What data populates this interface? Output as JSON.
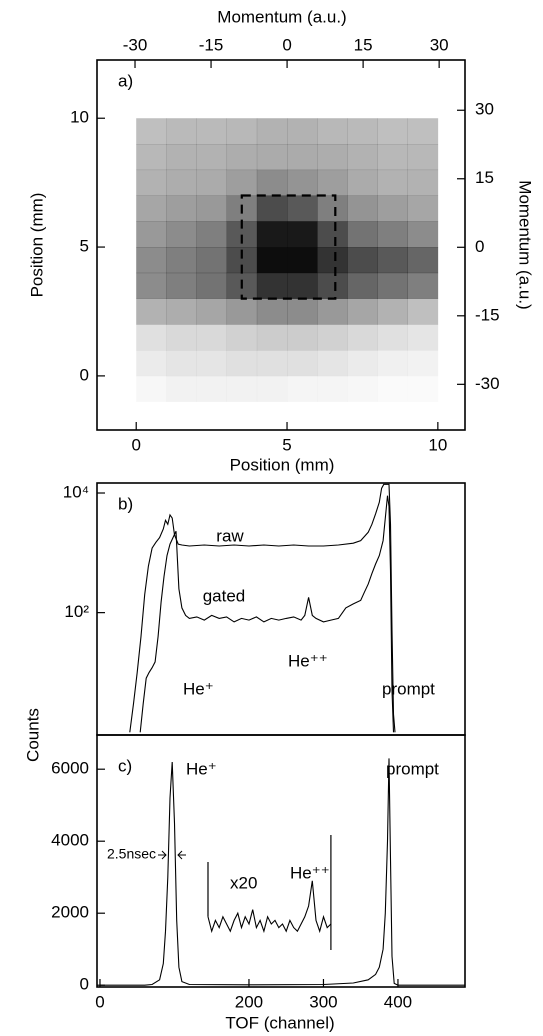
{
  "chart_data": [
    {
      "type": "heatmap",
      "label": "a)",
      "xlabel": "Position (mm)",
      "ylabel": "Position (mm)",
      "x2label": "Momentum (a.u.)",
      "y2label": "Momentum (a.u.)",
      "xlim": [
        -1.3,
        10.9
      ],
      "xticks": [
        0,
        5,
        10
      ],
      "ylim": [
        -2.1,
        12.26
      ],
      "yticks": [
        0,
        5,
        10
      ],
      "x2lim": [
        -37.5,
        35.1
      ],
      "x2ticks": [
        -30,
        -15,
        0,
        15,
        30
      ],
      "y2lim": [
        -40,
        41
      ],
      "y2ticks": [
        30,
        15,
        0,
        -15,
        -30
      ],
      "color": "#000000",
      "xbins": [
        0,
        1,
        2,
        3,
        4,
        5,
        6,
        7,
        8,
        9,
        10
      ],
      "ybins": [
        -1,
        0,
        1,
        2,
        3,
        4,
        5,
        6,
        7,
        8,
        9,
        10
      ],
      "z": [
        [
          0.03,
          0.05,
          0.05,
          0.05,
          0.05,
          0.04,
          0.04,
          0.03,
          0.02,
          0.02
        ],
        [
          0.08,
          0.1,
          0.1,
          0.12,
          0.12,
          0.12,
          0.1,
          0.08,
          0.06,
          0.05
        ],
        [
          0.12,
          0.15,
          0.15,
          0.18,
          0.2,
          0.2,
          0.18,
          0.15,
          0.12,
          0.1
        ],
        [
          0.3,
          0.32,
          0.35,
          0.4,
          0.45,
          0.45,
          0.4,
          0.35,
          0.3,
          0.25
        ],
        [
          0.45,
          0.5,
          0.55,
          0.65,
          0.8,
          0.8,
          0.7,
          0.6,
          0.55,
          0.5
        ],
        [
          0.45,
          0.5,
          0.55,
          0.7,
          0.95,
          0.95,
          0.8,
          0.7,
          0.65,
          0.6
        ],
        [
          0.4,
          0.45,
          0.5,
          0.65,
          0.9,
          0.9,
          0.7,
          0.55,
          0.5,
          0.45
        ],
        [
          0.35,
          0.38,
          0.4,
          0.5,
          0.7,
          0.65,
          0.5,
          0.42,
          0.38,
          0.35
        ],
        [
          0.3,
          0.32,
          0.33,
          0.38,
          0.45,
          0.42,
          0.38,
          0.33,
          0.3,
          0.3
        ],
        [
          0.28,
          0.3,
          0.3,
          0.32,
          0.33,
          0.33,
          0.32,
          0.3,
          0.28,
          0.28
        ],
        [
          0.25,
          0.27,
          0.27,
          0.28,
          0.3,
          0.3,
          0.28,
          0.27,
          0.25,
          0.25
        ]
      ],
      "gate": {
        "x": [
          3.5,
          6.6
        ],
        "y": [
          3.0,
          7.0
        ]
      }
    },
    {
      "type": "line",
      "label": "b)",
      "log_y": true,
      "xlim": [
        -4,
        490
      ],
      "ylim": [
        0.9,
        14700
      ],
      "yticks": [
        {
          "value": 100,
          "label": "10²"
        },
        {
          "value": 10000,
          "label": "10⁴"
        }
      ],
      "annotations": [
        "He⁺",
        "He⁺⁺",
        "prompt"
      ],
      "series": [
        {
          "name": "raw",
          "color": "#000000",
          "x": [
            40,
            45,
            50,
            55,
            60,
            65,
            70,
            75,
            80,
            85,
            88,
            91,
            94,
            97,
            100,
            105,
            110,
            120,
            140,
            160,
            180,
            200,
            220,
            240,
            260,
            280,
            300,
            320,
            340,
            350,
            360,
            365,
            370,
            375,
            378,
            381,
            384,
            386,
            388,
            390,
            392,
            394,
            396
          ],
          "values": [
            1,
            3,
            10,
            40,
            200,
            600,
            1200,
            1500,
            1800,
            2500,
            3500,
            3000,
            4300,
            3800,
            2000,
            1400,
            1350,
            1300,
            1350,
            1300,
            1350,
            1300,
            1350,
            1300,
            1350,
            1300,
            1300,
            1350,
            1450,
            1600,
            2200,
            3000,
            4500,
            7000,
            12000,
            14000,
            14000,
            14000,
            14000,
            3000,
            50,
            2,
            1
          ]
        },
        {
          "name": "gated",
          "color": "#000000",
          "x": [
            54,
            58,
            62,
            66,
            70,
            74,
            78,
            82,
            86,
            90,
            94,
            98,
            102,
            106,
            110,
            115,
            120,
            130,
            140,
            150,
            160,
            170,
            180,
            190,
            200,
            210,
            220,
            230,
            240,
            250,
            260,
            270,
            275,
            280,
            285,
            290,
            300,
            310,
            320,
            330,
            340,
            350,
            355,
            360,
            365,
            370,
            375,
            380,
            384,
            386,
            388,
            390,
            392,
            394
          ],
          "values": [
            1,
            3,
            8,
            10,
            12,
            15,
            40,
            150,
            400,
            900,
            1400,
            1800,
            2300,
            250,
            120,
            90,
            80,
            85,
            75,
            90,
            80,
            85,
            70,
            80,
            75,
            85,
            70,
            80,
            75,
            80,
            85,
            75,
            90,
            180,
            90,
            80,
            70,
            75,
            80,
            120,
            140,
            160,
            220,
            300,
            450,
            650,
            900,
            1600,
            5000,
            9000,
            6000,
            500,
            5,
            1
          ]
        }
      ]
    },
    {
      "type": "line",
      "label": "c)",
      "xlabel": "TOF (channel)",
      "ylabel": "Counts",
      "xlim": [
        -4,
        490
      ],
      "xticks": [
        0,
        200,
        300,
        400
      ],
      "ylim": [
        -50,
        6950
      ],
      "yticks": [
        0,
        2000,
        4000,
        6000
      ],
      "annotations": [
        "He⁺",
        "prompt",
        "He⁺⁺",
        "2.5nsec"
      ],
      "series": [
        {
          "color": "#000000",
          "x": [
            0,
            60,
            70,
            80,
            85,
            88,
            91,
            94,
            97,
            100,
            103,
            106,
            110,
            120,
            200,
            300,
            340,
            360,
            370,
            375,
            380,
            383,
            386,
            388,
            390,
            392,
            395,
            400,
            490
          ],
          "values": [
            0,
            0,
            20,
            150,
            600,
            1500,
            3000,
            5200,
            6200,
            4500,
            1800,
            500,
            100,
            20,
            10,
            20,
            60,
            150,
            300,
            500,
            1000,
            2000,
            4000,
            6300,
            3500,
            800,
            50,
            0,
            0
          ]
        },
        {
          "name": "x20",
          "color": "#000000",
          "x": [
            145,
            150,
            155,
            160,
            165,
            170,
            175,
            180,
            185,
            190,
            195,
            200,
            205,
            210,
            215,
            220,
            225,
            230,
            235,
            240,
            245,
            250,
            255,
            260,
            265,
            270,
            275,
            280,
            285,
            290,
            295,
            300,
            305,
            310
          ],
          "values": [
            1900,
            1500,
            1800,
            1600,
            1900,
            1700,
            1500,
            1800,
            2000,
            1600,
            1900,
            1700,
            2100,
            1600,
            1800,
            1500,
            1900,
            1700,
            1800,
            1600,
            1700,
            1500,
            1800,
            1600,
            1500,
            1700,
            1900,
            2200,
            2900,
            1800,
            1500,
            1900,
            1600,
            1700
          ]
        }
      ]
    }
  ]
}
